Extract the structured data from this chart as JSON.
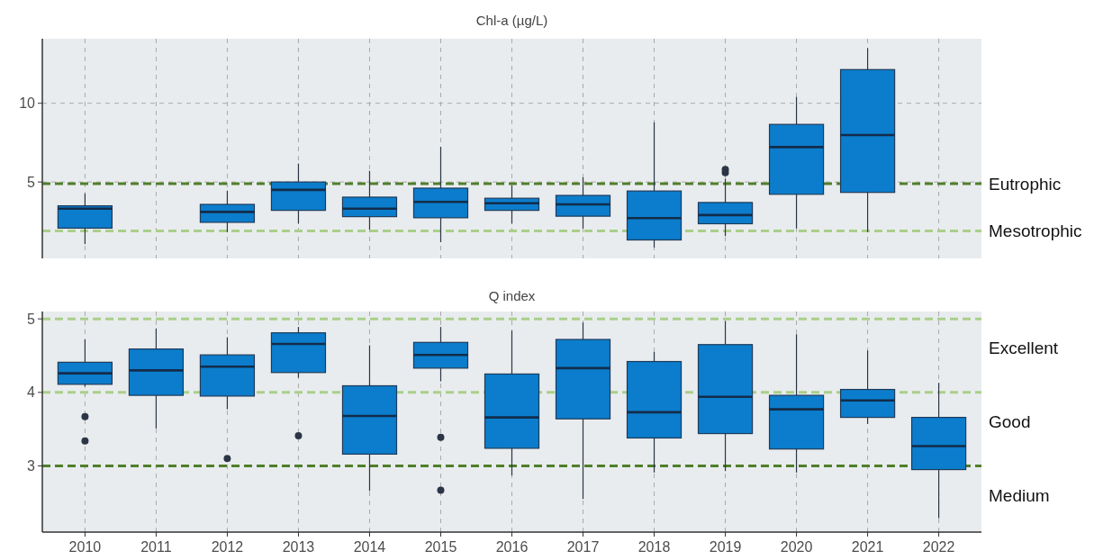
{
  "chart_data": [
    {
      "type": "box",
      "title": "Chl-a (µg/L)",
      "categories": [
        "2010",
        "2011",
        "2012",
        "2013",
        "2014",
        "2015",
        "2016",
        "2017",
        "2018",
        "2019",
        "2020",
        "2021",
        "2022"
      ],
      "color": "#0b7dcc",
      "ylim": [
        0.15,
        14.1
      ],
      "yticks": [
        5,
        10
      ],
      "grid": true,
      "tick_labels": "y",
      "boxes": [
        {
          "low": 1.06,
          "q1": 2.07,
          "median": 3.31,
          "q3": 3.49,
          "high": 4.27
        },
        null,
        {
          "low": 1.82,
          "q1": 2.44,
          "median": 3.1,
          "q3": 3.58,
          "high": 4.45
        },
        {
          "low": 2.35,
          "q1": 3.2,
          "median": 4.5,
          "q3": 5.0,
          "high": 6.17
        },
        {
          "low": 1.98,
          "q1": 2.8,
          "median": 3.31,
          "q3": 4.04,
          "high": 5.71
        },
        {
          "low": 1.18,
          "q1": 2.73,
          "median": 3.74,
          "q3": 4.61,
          "high": 7.24
        },
        {
          "low": 2.35,
          "q1": 3.2,
          "median": 3.65,
          "q3": 3.97,
          "high": 4.79
        },
        {
          "low": 2.05,
          "q1": 2.83,
          "median": 3.58,
          "q3": 4.15,
          "high": 5.3
        },
        {
          "low": 0.84,
          "q1": 1.32,
          "median": 2.71,
          "q3": 4.43,
          "high": 8.8
        },
        {
          "low": 1.57,
          "q1": 2.35,
          "median": 2.9,
          "q3": 3.7,
          "high": 5.21,
          "outliers": [
            5.6,
            5.8
          ]
        },
        {
          "low": 2.05,
          "q1": 4.22,
          "median": 7.22,
          "q3": 8.66,
          "high": 10.4
        },
        {
          "low": 1.82,
          "q1": 4.34,
          "median": 7.98,
          "q3": 12.14,
          "high": 13.5
        },
        null
      ],
      "ref_lines": [
        {
          "axis": "y",
          "value": 4.9,
          "label": "Eutrophic",
          "color": "#4f7f2a",
          "line_style": "dashed"
        },
        {
          "axis": "y",
          "value": 1.9,
          "label": "Mesotrophic",
          "color": "#a9cf8a",
          "line_style": "dashed"
        }
      ]
    },
    {
      "type": "box",
      "title": "Q index",
      "categories": [
        "2010",
        "2011",
        "2012",
        "2013",
        "2014",
        "2015",
        "2016",
        "2017",
        "2018",
        "2019",
        "2020",
        "2021",
        "2022"
      ],
      "color": "#0b7dcc",
      "ylim": [
        2.1,
        5.1
      ],
      "yticks": [
        3,
        4,
        5
      ],
      "grid": true,
      "boxes": [
        {
          "low": 4.08,
          "q1": 4.11,
          "median": 4.26,
          "q3": 4.41,
          "high": 4.72,
          "outliers": [
            3.67,
            3.34
          ]
        },
        {
          "low": 3.51,
          "q1": 3.96,
          "median": 4.3,
          "q3": 4.59,
          "high": 4.87
        },
        {
          "low": 3.77,
          "q1": 3.95,
          "median": 4.35,
          "q3": 4.51,
          "high": 4.75,
          "outliers": [
            3.1
          ]
        },
        {
          "low": 4.2,
          "q1": 4.27,
          "median": 4.66,
          "q3": 4.81,
          "high": 4.89,
          "outliers": [
            3.41
          ]
        },
        {
          "low": 2.66,
          "q1": 3.16,
          "median": 3.68,
          "q3": 4.09,
          "high": 4.64
        },
        {
          "low": 4.15,
          "q1": 4.33,
          "median": 4.51,
          "q3": 4.68,
          "high": 4.89,
          "outliers": [
            3.39,
            2.67
          ]
        },
        {
          "low": 2.87,
          "q1": 3.24,
          "median": 3.66,
          "q3": 4.25,
          "high": 4.84
        },
        {
          "low": 2.55,
          "q1": 3.64,
          "median": 4.33,
          "q3": 4.72,
          "high": 4.95
        },
        {
          "low": 2.91,
          "q1": 3.38,
          "median": 3.73,
          "q3": 4.42,
          "high": 4.55
        },
        {
          "low": 2.93,
          "q1": 3.44,
          "median": 3.94,
          "q3": 4.65,
          "high": 4.97
        },
        {
          "low": 2.91,
          "q1": 3.23,
          "median": 3.77,
          "q3": 3.96,
          "high": 4.79
        },
        {
          "low": 3.57,
          "q1": 3.66,
          "median": 3.89,
          "q3": 4.04,
          "high": 4.57
        },
        {
          "low": 2.29,
          "q1": 2.95,
          "median": 3.27,
          "q3": 3.66,
          "high": 4.13
        }
      ],
      "ref_lines": [
        {
          "axis": "y",
          "value": 5,
          "color": "#a9cf8a",
          "line_style": "dashed"
        },
        {
          "axis": "y",
          "value": 4,
          "color": "#a9cf8a",
          "line_style": "dashed"
        },
        {
          "axis": "y",
          "value": 3,
          "color": "#4f7f2a",
          "line_style": "dashed"
        }
      ],
      "annotations": [
        "Excellent",
        "Good",
        "Medium"
      ]
    }
  ]
}
